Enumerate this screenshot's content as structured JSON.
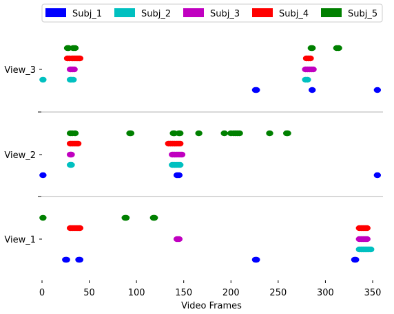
{
  "chart_data": {
    "type": "scatter",
    "title": "",
    "xlabel": "Video Frames",
    "ylabel": "",
    "xlim": [
      0,
      360
    ],
    "xticks": [
      0,
      50,
      100,
      150,
      200,
      250,
      300,
      350
    ],
    "views": [
      "View_1",
      "View_2",
      "View_3"
    ],
    "legend_position": "top-right",
    "grid": false,
    "series": [
      {
        "name": "Subj_1",
        "color": "#0000ff",
        "points": {
          "View_1": [
            25,
            26,
            39,
            40,
            226,
            227,
            331,
            332
          ],
          "View_2": [
            1,
            143,
            145,
            355
          ],
          "View_3": [
            226,
            227,
            286,
            355
          ]
        }
      },
      {
        "name": "Subj_2",
        "color": "#00c0c0",
        "points": {
          "View_1": [
            336,
            338,
            340,
            342,
            344,
            346,
            348
          ],
          "View_2": [
            30,
            31,
            138,
            140,
            142,
            144,
            146
          ],
          "View_3": [
            1,
            30,
            31,
            33,
            279,
            281
          ]
        }
      },
      {
        "name": "Subj_3",
        "color": "#c000c0",
        "points": {
          "View_1": [
            143,
            145,
            336,
            338,
            340,
            342,
            344
          ],
          "View_2": [
            30,
            31,
            138,
            140,
            142,
            144,
            146,
            148
          ],
          "View_3": [
            30,
            32,
            34,
            279,
            281,
            283,
            285,
            287
          ]
        }
      },
      {
        "name": "Subj_4",
        "color": "#ff0000",
        "points": {
          "View_1": [
            30,
            32,
            34,
            36,
            38,
            40,
            336,
            338,
            340,
            342,
            344
          ],
          "View_2": [
            30,
            32,
            34,
            36,
            38,
            134,
            136,
            138,
            140,
            142,
            144,
            146
          ],
          "View_3": [
            27,
            29,
            32,
            34,
            36,
            38,
            40,
            280,
            282,
            284
          ]
        }
      },
      {
        "name": "Subj_5",
        "color": "#008000",
        "points": {
          "View_1": [
            1,
            88,
            89,
            118,
            119
          ],
          "View_2": [
            30,
            32,
            35,
            93,
            94,
            139,
            140,
            145,
            146,
            166,
            193,
            200,
            203,
            205,
            207,
            209,
            241,
            259,
            260
          ],
          "View_3": [
            27,
            28,
            33,
            35,
            285,
            286,
            312,
            314
          ]
        }
      }
    ]
  }
}
